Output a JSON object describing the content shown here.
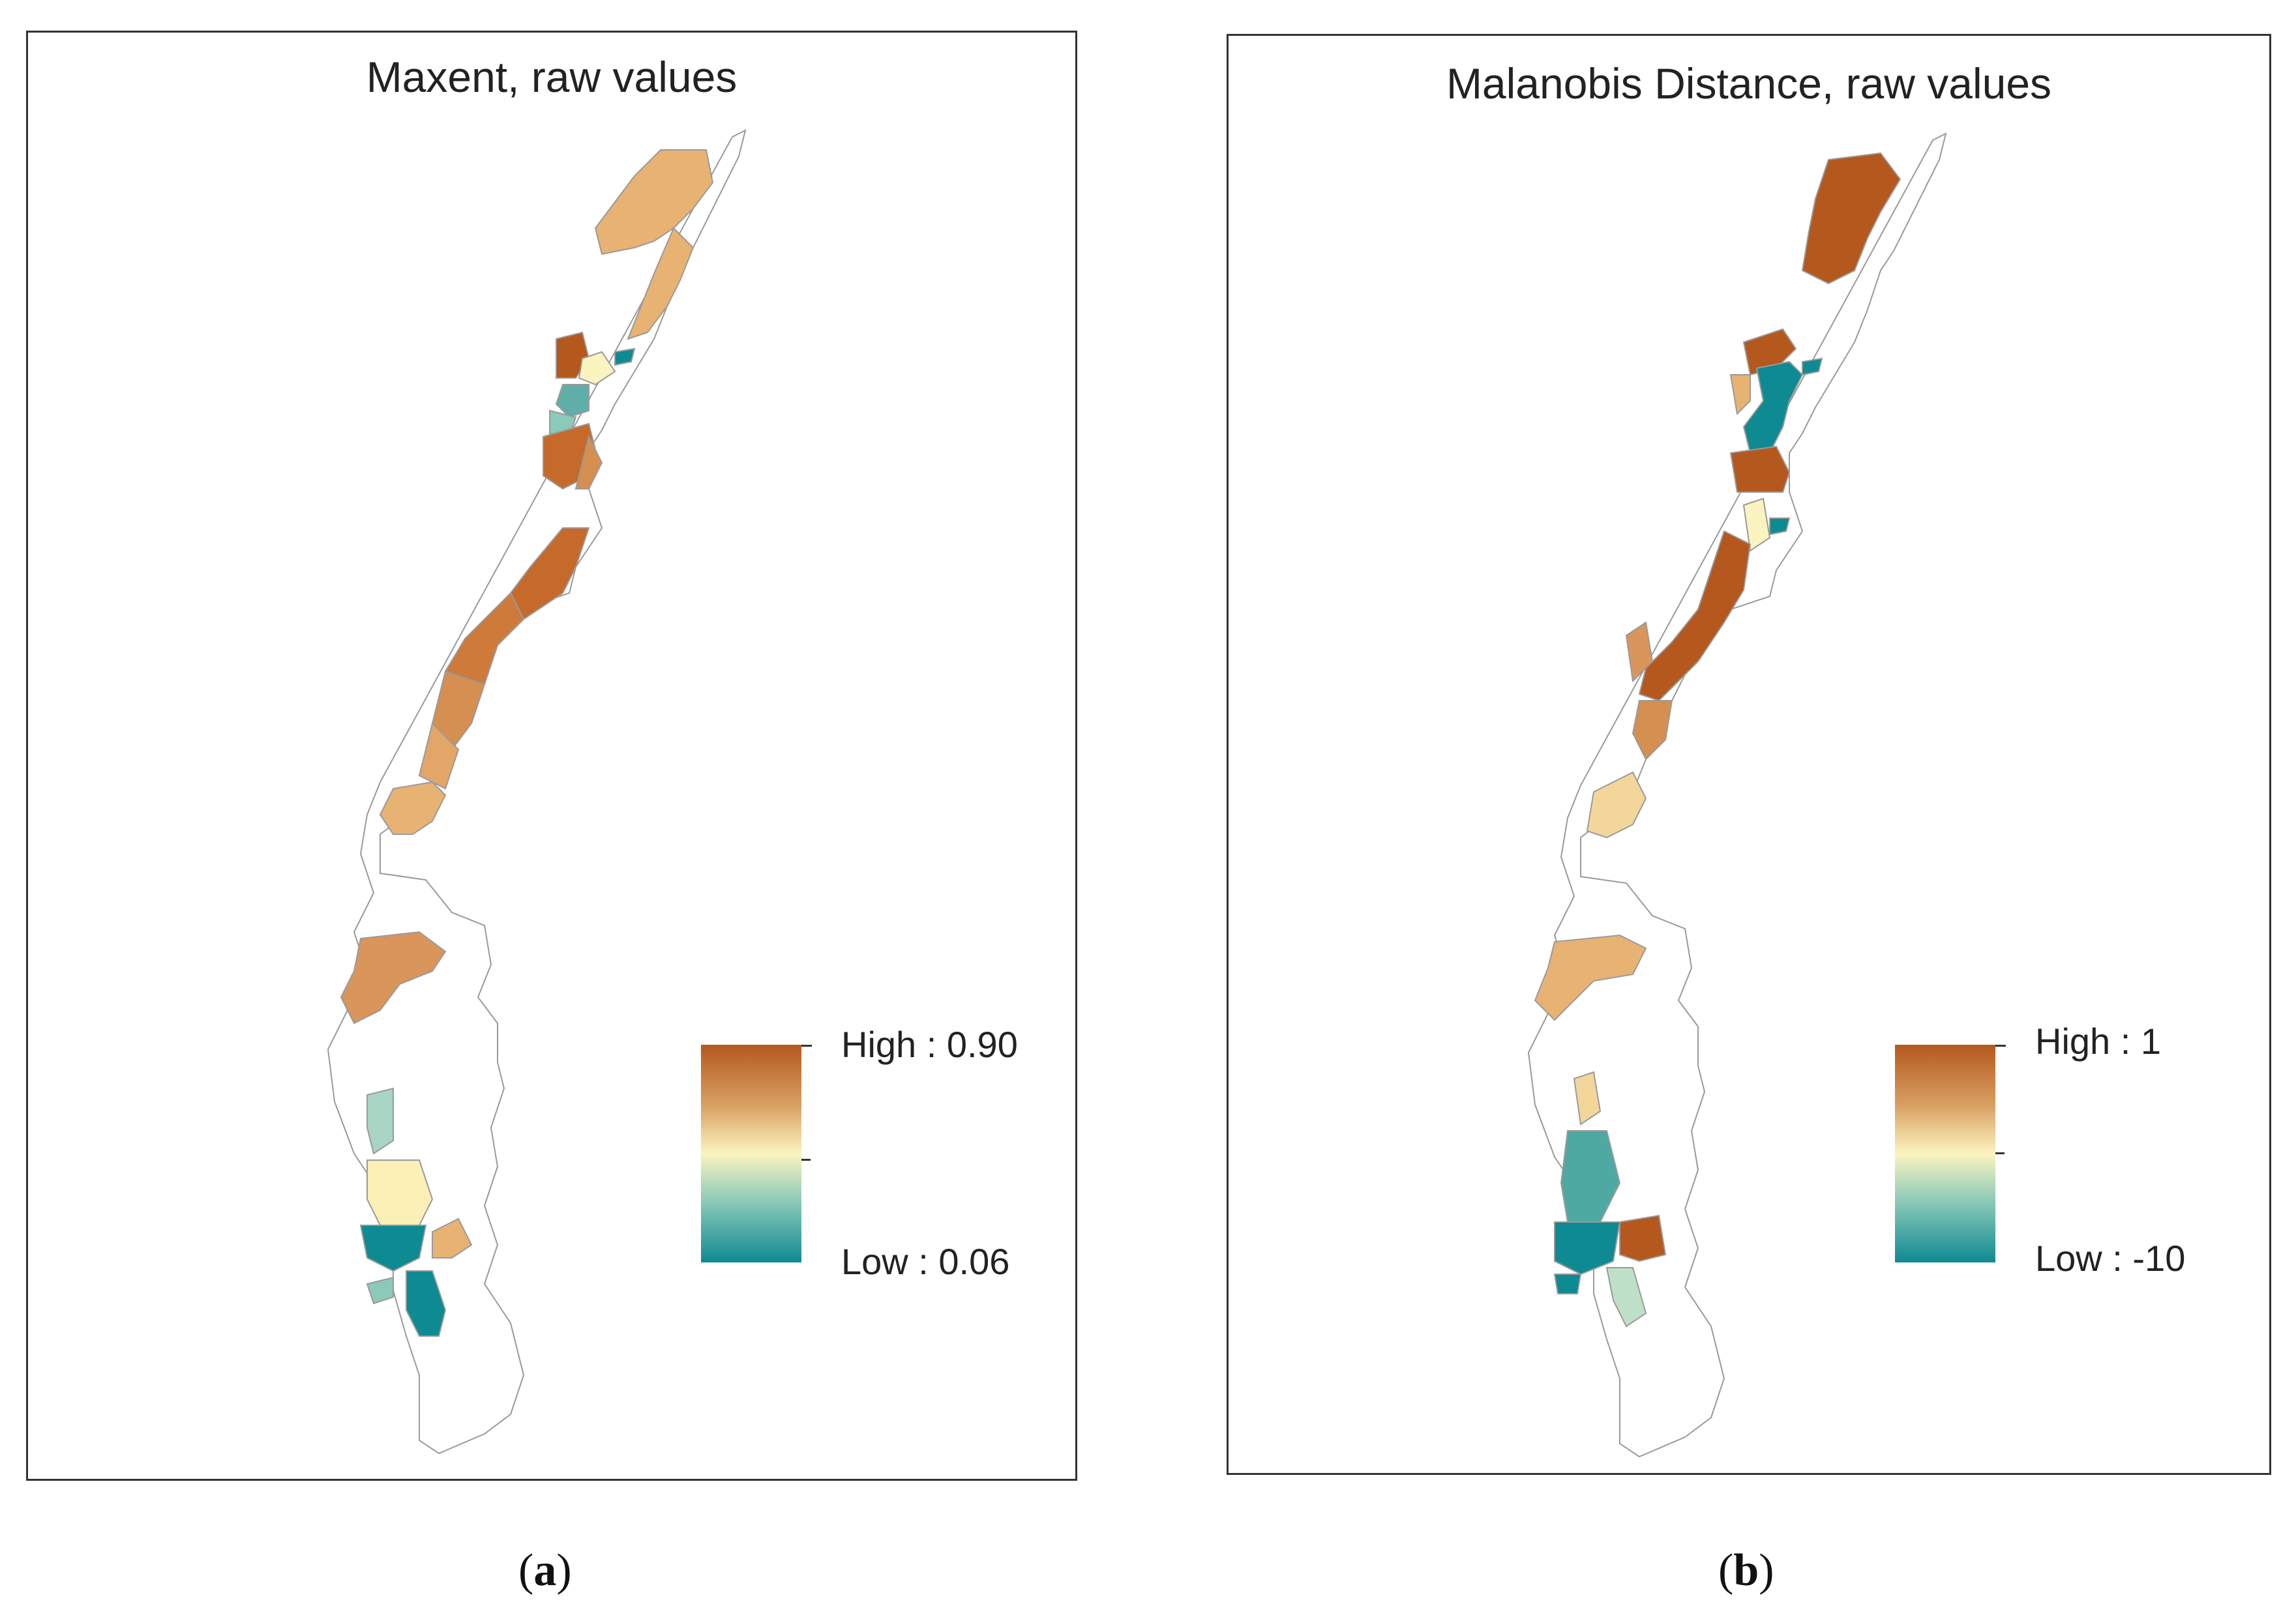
{
  "panels": [
    {
      "id": "a",
      "title": "Maxent, raw values",
      "legend": {
        "high_label": "High : 0.90",
        "low_label": "Low : 0.06",
        "high_value": 0.9,
        "low_value": 0.06
      },
      "caption_letter": "a"
    },
    {
      "id": "b",
      "title": "Malanobis Distance, raw values",
      "legend": {
        "high_label": "High : 1",
        "low_label": "Low : -10",
        "high_value": 1,
        "low_value": -10
      },
      "caption_letter": "b"
    }
  ],
  "colors": {
    "high": "#B5581E",
    "mid_high": "#D9A063",
    "mid": "#FBF4C0",
    "mid_low": "#8BC9B8",
    "low": "#0E8A92",
    "outline": "#9a9a9a"
  }
}
